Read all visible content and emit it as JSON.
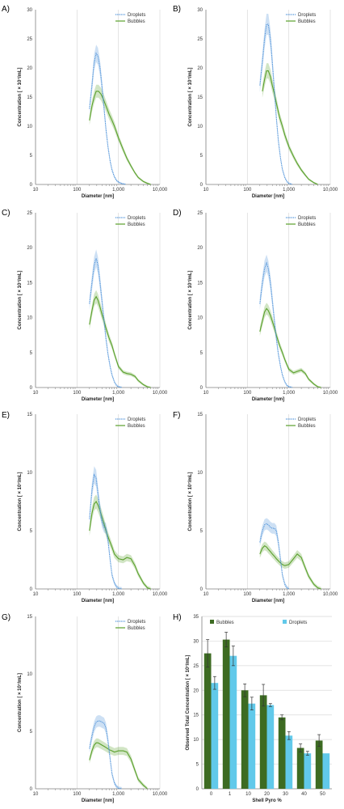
{
  "panel_labels": [
    "A)",
    "B)",
    "C)",
    "D)",
    "E)",
    "F)",
    "G)",
    "H)"
  ],
  "colors": {
    "droplets": "#4a90d9",
    "bubbles": "#5aa02c",
    "bar_bubbles": "#3d6b22",
    "bar_droplets": "#61c9ea",
    "grid": "#d9d9d9",
    "axis": "#7f7f7f"
  },
  "chart_data": [
    {
      "panel": "A)",
      "type": "line",
      "xscale": "log",
      "xlabel": "Diameter [nm]",
      "ylabel": "Concentration [ × 10⁷/mL]",
      "xlim": [
        10,
        10000
      ],
      "ylim": [
        0,
        30
      ],
      "x_ticks": [
        10,
        100,
        1000,
        10000
      ],
      "x_tick_labels": [
        "10",
        "100",
        "1,000",
        "10,000"
      ],
      "y_ticks": [
        0,
        5,
        10,
        15,
        20,
        25,
        30
      ],
      "y_tick_labels": [
        "0",
        "5",
        "10",
        "15",
        "20",
        "25",
        "30"
      ],
      "grid": "vertical",
      "legend": "top-right",
      "series": [
        {
          "name": "Droplets",
          "style": "dotted-blue",
          "x": [
            200,
            230,
            260,
            290,
            320,
            360,
            400,
            450,
            500,
            560,
            630,
            700,
            800,
            900,
            1000,
            1200,
            1500
          ],
          "y": [
            13,
            17,
            21,
            22.5,
            22,
            20,
            17,
            13,
            9.5,
            6.5,
            4,
            2.5,
            1.3,
            0.7,
            0.4,
            0.15,
            0
          ]
        },
        {
          "name": "Bubbles",
          "style": "solid-green",
          "x": [
            200,
            230,
            260,
            290,
            330,
            380,
            440,
            500,
            600,
            700,
            800,
            1000,
            1300,
            1600,
            2000,
            2500,
            3000,
            4000,
            5000,
            6000
          ],
          "y": [
            11,
            13.5,
            15,
            16,
            16,
            15.5,
            14.5,
            13.5,
            12,
            11,
            10,
            8,
            6,
            4.5,
            3.2,
            2,
            1.2,
            0.5,
            0.2,
            0
          ]
        }
      ]
    },
    {
      "panel": "B)",
      "type": "line",
      "xscale": "log",
      "xlabel": "Diameter [nm]",
      "ylabel": "Concentration [ × 10⁷/mL]",
      "xlim": [
        10,
        10000
      ],
      "ylim": [
        0,
        30
      ],
      "x_ticks": [
        10,
        100,
        1000,
        10000
      ],
      "x_tick_labels": [
        "10",
        "100",
        "1,000",
        "10,000"
      ],
      "y_ticks": [
        0,
        5,
        10,
        15,
        20,
        25,
        30
      ],
      "y_tick_labels": [
        "0",
        "5",
        "10",
        "15",
        "20",
        "25",
        "30"
      ],
      "grid": "vertical",
      "legend": "top-right",
      "series": [
        {
          "name": "Droplets",
          "style": "dotted-blue",
          "x": [
            200,
            230,
            260,
            290,
            320,
            360,
            400,
            450,
            500,
            560,
            630,
            700,
            800,
            900,
            1000,
            1200
          ],
          "y": [
            17,
            21,
            25,
            27.5,
            27.5,
            25,
            21,
            16,
            11.5,
            7.5,
            4.5,
            2.6,
            1.2,
            0.5,
            0.2,
            0
          ]
        },
        {
          "name": "Bubbles",
          "style": "solid-green",
          "x": [
            230,
            260,
            290,
            320,
            360,
            400,
            450,
            500,
            600,
            700,
            800,
            1000,
            1300,
            1600,
            2000,
            2500,
            3000,
            4000,
            5000
          ],
          "y": [
            16,
            18,
            19.5,
            19.5,
            18.5,
            17,
            15.5,
            14,
            11.5,
            10,
            8.5,
            6.5,
            4.8,
            3.6,
            2.5,
            1.6,
            0.9,
            0.3,
            0
          ]
        }
      ]
    },
    {
      "panel": "C)",
      "type": "line",
      "xscale": "log",
      "xlabel": "Diameter [nm]",
      "ylabel": "Concentration [ × 10⁷/mL]",
      "xlim": [
        10,
        10000
      ],
      "ylim": [
        0,
        25
      ],
      "x_ticks": [
        10,
        100,
        1000,
        10000
      ],
      "x_tick_labels": [
        "10",
        "100",
        "1,000",
        "10,000"
      ],
      "y_ticks": [
        0,
        5,
        10,
        15,
        20,
        25
      ],
      "y_tick_labels": [
        "0",
        "5",
        "10",
        "15",
        "20",
        "25"
      ],
      "grid": "vertical",
      "legend": "top-right",
      "series": [
        {
          "name": "Droplets",
          "style": "dotted-blue",
          "x": [
            200,
            230,
            260,
            290,
            320,
            360,
            400,
            450,
            500,
            560,
            630,
            700,
            800,
            900,
            1000,
            1200
          ],
          "y": [
            12,
            15,
            17.5,
            18.5,
            17.5,
            15,
            12.5,
            9.5,
            7,
            4.8,
            3,
            1.8,
            0.8,
            0.3,
            0.1,
            0
          ]
        },
        {
          "name": "Bubbles",
          "style": "solid-green",
          "x": [
            200,
            230,
            260,
            290,
            320,
            360,
            400,
            450,
            500,
            600,
            700,
            800,
            1000,
            1300,
            1600,
            2000,
            2500,
            3000,
            4000,
            5000,
            6000
          ],
          "y": [
            9,
            11,
            12.5,
            13,
            12.5,
            11.5,
            10.5,
            9.5,
            8.5,
            7,
            6,
            4.8,
            3,
            2.2,
            2,
            1.9,
            1.6,
            1,
            0.4,
            0.1,
            0
          ]
        }
      ]
    },
    {
      "panel": "D)",
      "type": "line",
      "xscale": "log",
      "xlabel": "Diameter [nm]",
      "ylabel": "Concentration [ × 10⁷/mL]",
      "xlim": [
        10,
        10000
      ],
      "ylim": [
        0,
        25
      ],
      "x_ticks": [
        10,
        100,
        1000,
        10000
      ],
      "x_tick_labels": [
        "10",
        "100",
        "1,000",
        "10,000"
      ],
      "y_ticks": [
        0,
        5,
        10,
        15,
        20,
        25
      ],
      "y_tick_labels": [
        "0",
        "5",
        "10",
        "15",
        "20",
        "25"
      ],
      "grid": "vertical",
      "legend": "top-right",
      "series": [
        {
          "name": "Droplets",
          "style": "dotted-blue",
          "x": [
            200,
            230,
            260,
            290,
            320,
            360,
            400,
            450,
            500,
            560,
            630,
            700,
            800,
            900,
            1000,
            1200
          ],
          "y": [
            12,
            15,
            17,
            17.8,
            17,
            15,
            12.5,
            9.5,
            7,
            4.8,
            3,
            1.8,
            0.8,
            0.3,
            0.1,
            0
          ]
        },
        {
          "name": "Bubbles",
          "style": "solid-green",
          "x": [
            200,
            230,
            260,
            290,
            320,
            360,
            400,
            450,
            500,
            600,
            700,
            800,
            1000,
            1300,
            1600,
            2000,
            2500,
            3000,
            4000,
            5000,
            6000
          ],
          "y": [
            8,
            9.5,
            10.8,
            11.3,
            11,
            10.3,
            9.5,
            8.5,
            7.5,
            6,
            5,
            4,
            2.6,
            2.1,
            2.3,
            2.5,
            2,
            1.2,
            0.5,
            0.1,
            0
          ]
        }
      ]
    },
    {
      "panel": "E)",
      "type": "line",
      "xscale": "log",
      "xlabel": "Diameter [nm]",
      "ylabel": "Concentration [ × 10⁷/mL]",
      "xlim": [
        10,
        10000
      ],
      "ylim": [
        0,
        15
      ],
      "x_ticks": [
        10,
        100,
        1000,
        10000
      ],
      "x_tick_labels": [
        "10",
        "100",
        "1,000",
        "10,000"
      ],
      "y_ticks": [
        0,
        5,
        10,
        15
      ],
      "y_tick_labels": [
        "0",
        "5",
        "10",
        "15"
      ],
      "grid": "vertical",
      "legend": "top-right",
      "series": [
        {
          "name": "Droplets",
          "style": "dotted-blue",
          "x": [
            200,
            230,
            260,
            290,
            320,
            360,
            400,
            450,
            500,
            560,
            630,
            700,
            800,
            900,
            1000,
            1200
          ],
          "y": [
            6,
            8.5,
            9.8,
            9.5,
            8.2,
            6.8,
            5.8,
            5.3,
            5.2,
            4.2,
            2.5,
            1.2,
            0.5,
            0.2,
            0.05,
            0
          ]
        },
        {
          "name": "Bubbles",
          "style": "solid-green",
          "x": [
            200,
            230,
            260,
            290,
            320,
            360,
            400,
            450,
            500,
            600,
            700,
            800,
            1000,
            1300,
            1600,
            2000,
            2500,
            3000,
            4000,
            5000,
            6000
          ],
          "y": [
            5,
            6.5,
            7.3,
            7.5,
            7.2,
            6.7,
            6.2,
            5.6,
            5,
            4.2,
            3.6,
            3,
            2.6,
            2.5,
            2.7,
            2.6,
            2,
            1.3,
            0.5,
            0.1,
            0
          ]
        }
      ]
    },
    {
      "panel": "F)",
      "type": "line",
      "xscale": "log",
      "xlabel": "Diameter [nm]",
      "ylabel": "Concentration [ × 10⁷/mL]",
      "xlim": [
        10,
        10000
      ],
      "ylim": [
        0,
        15
      ],
      "x_ticks": [
        10,
        100,
        1000,
        10000
      ],
      "x_tick_labels": [
        "10",
        "100",
        "1,000",
        "10,000"
      ],
      "y_ticks": [
        0,
        5,
        10,
        15
      ],
      "y_tick_labels": [
        "0",
        "5",
        "10",
        "15"
      ],
      "grid": "vertical",
      "legend": "top-right",
      "series": [
        {
          "name": "Droplets",
          "style": "dotted-blue",
          "x": [
            200,
            230,
            260,
            290,
            320,
            360,
            400,
            450,
            500,
            560,
            630,
            700,
            800,
            900,
            1000
          ],
          "y": [
            4,
            5,
            5.5,
            5.6,
            5.5,
            5.3,
            5.2,
            5.2,
            5,
            4,
            2.5,
            1.2,
            0.4,
            0.1,
            0
          ]
        },
        {
          "name": "Bubbles",
          "style": "solid-green",
          "x": [
            200,
            230,
            260,
            290,
            320,
            360,
            400,
            450,
            500,
            600,
            700,
            800,
            1000,
            1300,
            1600,
            2000,
            2500,
            3000,
            4000,
            5000,
            6000
          ],
          "y": [
            3,
            3.5,
            3.7,
            3.6,
            3.4,
            3.2,
            3,
            2.8,
            2.6,
            2.3,
            2.1,
            2,
            2.1,
            2.6,
            3,
            2.7,
            1.8,
            1.1,
            0.4,
            0.1,
            0
          ]
        }
      ]
    },
    {
      "panel": "G)",
      "type": "line",
      "xscale": "log",
      "xlabel": "Diameter [nm]",
      "ylabel": "Concentration [ × 10⁷/mL]",
      "xlim": [
        10,
        10000
      ],
      "ylim": [
        0,
        15
      ],
      "x_ticks": [
        10,
        100,
        1000,
        10000
      ],
      "x_tick_labels": [
        "10",
        "100",
        "1,000",
        "10,000"
      ],
      "y_ticks": [
        0,
        5,
        10,
        15
      ],
      "y_tick_labels": [
        "0",
        "5",
        "10",
        "15"
      ],
      "grid": "vertical",
      "legend": "top-right",
      "series": [
        {
          "name": "Droplets",
          "style": "dotted-blue",
          "x": [
            200,
            230,
            260,
            290,
            320,
            360,
            400,
            450,
            500,
            560,
            630,
            700,
            800,
            900,
            1000,
            1200
          ],
          "y": [
            3.5,
            4.6,
            5.4,
            5.8,
            5.9,
            5.9,
            5.8,
            5.7,
            5.3,
            4.2,
            2.6,
            1.3,
            0.5,
            0.2,
            0.05,
            0
          ]
        },
        {
          "name": "Bubbles",
          "style": "solid-green",
          "x": [
            200,
            230,
            260,
            290,
            320,
            360,
            400,
            450,
            500,
            600,
            700,
            800,
            1000,
            1300,
            1600,
            2000,
            2500,
            3000,
            4000,
            5000
          ],
          "y": [
            2.5,
            3.3,
            3.8,
            4,
            4,
            3.9,
            3.8,
            3.7,
            3.6,
            3.4,
            3.3,
            3.2,
            3.3,
            3.3,
            3.2,
            2.6,
            1.6,
            0.8,
            0.3,
            0
          ]
        }
      ]
    },
    {
      "panel": "H)",
      "type": "bar",
      "xlabel": "Shell Pyro %",
      "ylabel": "Observed Total Concentration [ × 10⁷/mL]",
      "ylim": [
        0,
        35
      ],
      "y_ticks": [
        0,
        5,
        10,
        15,
        20,
        25,
        30,
        35
      ],
      "y_tick_labels": [
        "0",
        "5",
        "10",
        "15",
        "20",
        "25",
        "30",
        "35"
      ],
      "categories": [
        "0",
        "1",
        "10",
        "20",
        "30",
        "40",
        "50"
      ],
      "legend": "top",
      "series": [
        {
          "name": "Bubbles",
          "values": [
            27.5,
            30.3,
            20,
            19,
            14.5,
            8.3,
            9.8
          ],
          "errors": [
            2.8,
            1.5,
            1.3,
            2.2,
            0.5,
            0.8,
            1.2
          ]
        },
        {
          "name": "Droplets",
          "values": [
            21.5,
            27,
            17.3,
            17,
            10.8,
            7.2,
            7.2
          ],
          "errors": [
            1.3,
            2,
            1.3,
            0.3,
            0.8,
            0.4,
            0
          ]
        }
      ]
    }
  ]
}
